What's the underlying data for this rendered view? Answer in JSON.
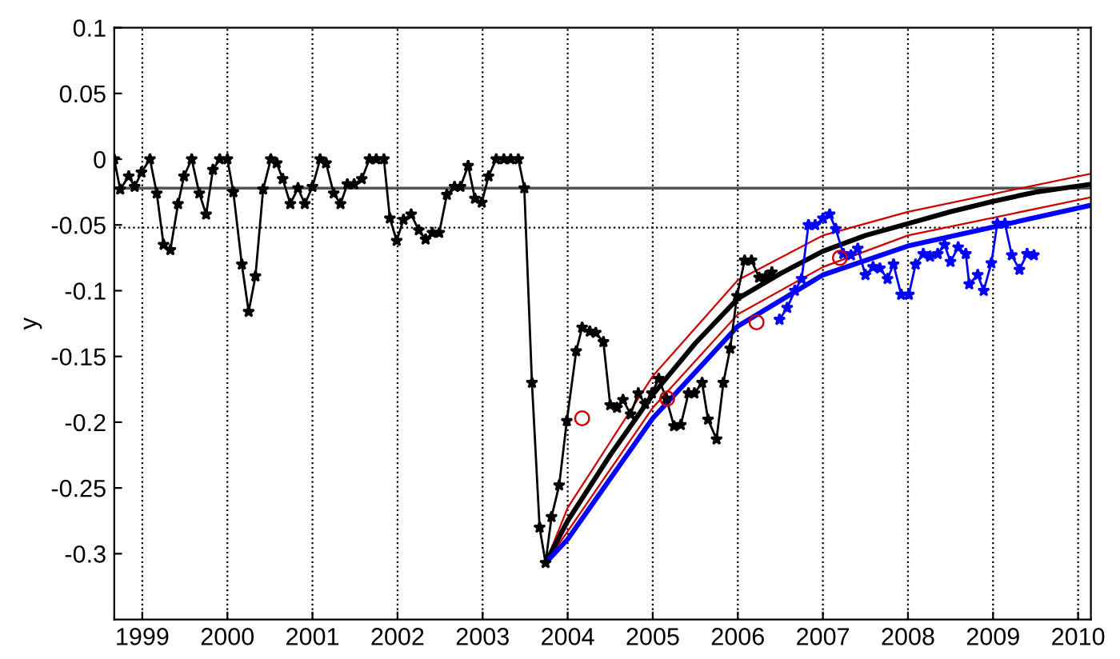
{
  "chart_data": {
    "type": "line",
    "ylabel": "y",
    "xlim": [
      1998.67,
      2010.15
    ],
    "ylim": [
      -0.35,
      0.1
    ],
    "xticks": [
      1999,
      2000,
      2001,
      2002,
      2003,
      2004,
      2005,
      2006,
      2007,
      2008,
      2009,
      2010
    ],
    "yticks": [
      -0.3,
      -0.25,
      -0.2,
      -0.15,
      -0.1,
      -0.05,
      0,
      0.05,
      0.1
    ],
    "grid": "x",
    "ref_lines": [
      {
        "axis": "y",
        "value": -0.022,
        "color": "#555555",
        "line_style": "solid"
      },
      {
        "axis": "y",
        "value": -0.052,
        "color": "#000000",
        "line_style": "dotted"
      }
    ],
    "series": [
      {
        "color": "#000000",
        "marker": "star",
        "line_style": "solid",
        "x": [
          1998.67,
          1998.74,
          1998.84,
          1998.91,
          1998.99,
          1999.09,
          1999.17,
          1999.25,
          1999.33,
          1999.42,
          1999.49,
          1999.58,
          1999.67,
          1999.75,
          1999.83,
          1999.91,
          2000.0,
          2000.07,
          2000.17,
          2000.25,
          2000.33,
          2000.42,
          2000.51,
          2000.58,
          2000.65,
          2000.74,
          2000.83,
          2000.91,
          2001.0,
          2001.09,
          2001.16,
          2001.25,
          2001.33,
          2001.41,
          2001.49,
          2001.58,
          2001.67,
          2001.75,
          2001.84,
          2001.91,
          2001.99,
          2002.07,
          2002.16,
          2002.25,
          2002.33,
          2002.41,
          2002.49,
          2002.58,
          2002.67,
          2002.74,
          2002.83,
          2002.91,
          2002.99,
          2003.07,
          2003.16,
          2003.25,
          2003.33,
          2003.42,
          2003.49,
          2003.58,
          2003.67,
          2003.74,
          2003.81,
          2003.9,
          2003.99,
          2004.1,
          2004.17,
          2004.26,
          2004.33,
          2004.42,
          2004.5,
          2004.58,
          2004.65,
          2004.74,
          2004.83,
          2004.91,
          2004.99,
          2005.07,
          2005.16,
          2005.25,
          2005.33,
          2005.42,
          2005.49,
          2005.58,
          2005.65,
          2005.75,
          2005.83,
          2005.91,
          2005.99,
          2006.08,
          2006.16,
          2006.25,
          2006.33,
          2006.4
        ],
        "values": [
          0,
          -0.023,
          -0.013,
          -0.021,
          -0.01,
          0,
          -0.026,
          -0.065,
          -0.069,
          -0.034,
          -0.013,
          0,
          -0.026,
          -0.042,
          -0.008,
          0,
          0,
          -0.025,
          -0.08,
          -0.116,
          -0.089,
          -0.023,
          0,
          -0.003,
          -0.015,
          -0.034,
          -0.022,
          -0.034,
          -0.021,
          0,
          -0.003,
          -0.026,
          -0.034,
          -0.019,
          -0.019,
          -0.015,
          0,
          0,
          0,
          -0.045,
          -0.062,
          -0.046,
          -0.042,
          -0.054,
          -0.061,
          -0.056,
          -0.056,
          -0.027,
          -0.021,
          -0.021,
          -0.005,
          -0.03,
          -0.033,
          -0.013,
          0,
          0,
          0,
          0,
          -0.022,
          -0.17,
          -0.28,
          -0.307,
          -0.272,
          -0.248,
          -0.199,
          -0.146,
          -0.128,
          -0.131,
          -0.132,
          -0.139,
          -0.187,
          -0.189,
          -0.183,
          -0.194,
          -0.178,
          -0.186,
          -0.178,
          -0.167,
          -0.182,
          -0.203,
          -0.202,
          -0.178,
          -0.178,
          -0.17,
          -0.198,
          -0.213,
          -0.17,
          -0.144,
          -0.104,
          -0.077,
          -0.077,
          -0.09,
          -0.089,
          -0.086
        ]
      },
      {
        "color": "#0000ff",
        "marker": "star",
        "line_style": "solid",
        "x": [
          2006.49,
          2006.58,
          2006.67,
          2006.75,
          2006.83,
          2006.91,
          2007.0,
          2007.08,
          2007.15,
          2007.24,
          2007.33,
          2007.41,
          2007.5,
          2007.59,
          2007.67,
          2007.76,
          2007.83,
          2007.92,
          2008.01,
          2008.09,
          2008.18,
          2008.26,
          2008.35,
          2008.43,
          2008.5,
          2008.59,
          2008.68,
          2008.72,
          2008.82,
          2008.89,
          2008.98,
          2009.05,
          2009.14,
          2009.22,
          2009.31,
          2009.4,
          2009.48
        ],
        "values": [
          -0.122,
          -0.113,
          -0.1,
          -0.091,
          -0.05,
          -0.05,
          -0.045,
          -0.042,
          -0.053,
          -0.072,
          -0.073,
          -0.068,
          -0.088,
          -0.082,
          -0.083,
          -0.091,
          -0.08,
          -0.103,
          -0.103,
          -0.08,
          -0.072,
          -0.074,
          -0.072,
          -0.065,
          -0.078,
          -0.067,
          -0.072,
          -0.095,
          -0.088,
          -0.1,
          -0.079,
          -0.049,
          -0.049,
          -0.073,
          -0.084,
          -0.072,
          -0.073
        ]
      },
      {
        "color": "#cc0000",
        "marker": "none",
        "line_style": "solid",
        "x": [
          2003.74,
          2004.0,
          2005.0,
          2006.0,
          2007.0,
          2008.0,
          2010.15
        ],
        "values": [
          -0.307,
          -0.265,
          -0.165,
          -0.092,
          -0.058,
          -0.04,
          -0.011
        ]
      },
      {
        "color": "#cc0000",
        "marker": "none",
        "line_style": "solid",
        "x": [
          2003.74,
          2004.0,
          2005.0,
          2006.0,
          2007.0,
          2008.0,
          2010.15
        ],
        "values": [
          -0.307,
          -0.283,
          -0.189,
          -0.118,
          -0.082,
          -0.058,
          -0.029
        ]
      },
      {
        "color": "#000000",
        "marker": "none",
        "line_style": "solid",
        "x": [
          2003.74,
          2004.0,
          2004.5,
          2005.0,
          2005.5,
          2006.0,
          2006.5,
          2007.0,
          2007.5,
          2008.0,
          2008.5,
          2009.0,
          2009.5,
          2010.15
        ],
        "values": [
          -0.307,
          -0.275,
          -0.225,
          -0.179,
          -0.14,
          -0.106,
          -0.087,
          -0.07,
          -0.058,
          -0.049,
          -0.04,
          -0.032,
          -0.025,
          -0.019
        ]
      },
      {
        "color": "#0000ff",
        "marker": "none",
        "line_style": "solid",
        "x": [
          2003.74,
          2004.0,
          2005.0,
          2006.0,
          2007.0,
          2008.0,
          2010.15
        ],
        "values": [
          -0.307,
          -0.289,
          -0.197,
          -0.127,
          -0.088,
          -0.066,
          -0.035
        ]
      },
      {
        "type": "scatter",
        "color": "#cc0000",
        "marker": "circle",
        "x": [
          2004.17,
          2005.17,
          2006.22,
          2007.2
        ],
        "values": [
          -0.197,
          -0.182,
          -0.124,
          -0.075
        ]
      }
    ]
  }
}
